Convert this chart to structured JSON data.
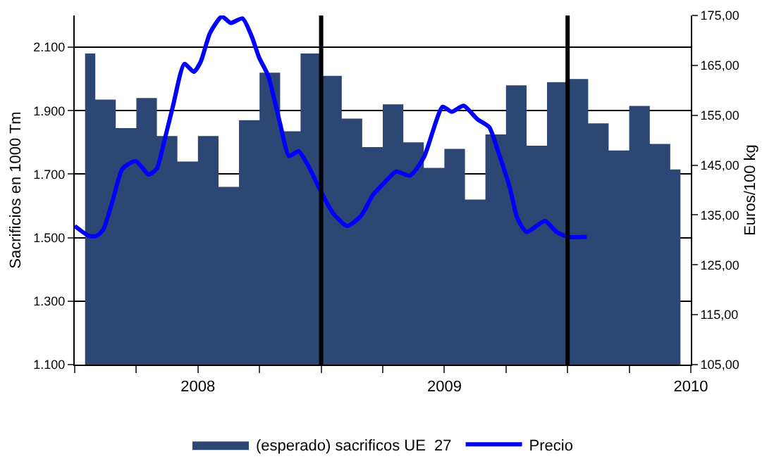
{
  "chart_data": {
    "type": "area",
    "ylabel": "Sacrificios en 1000 Tm",
    "y2label": "Euros/100 kg",
    "xlim": [
      2007.5,
      2010
    ],
    "xticks": [
      {
        "value": 2007.5,
        "label": null
      },
      {
        "value": 2007.75,
        "label": null
      },
      2008,
      {
        "value": 2008.25,
        "label": null
      },
      {
        "value": 2008.5,
        "label": null
      },
      {
        "value": 2008.75,
        "label": null
      },
      2009,
      {
        "value": 2009.25,
        "label": null
      },
      {
        "value": 2009.5,
        "label": null
      },
      {
        "value": 2009.75,
        "label": null
      },
      2010
    ],
    "ylim": [
      1100,
      2200
    ],
    "yticks": [
      {
        "value": 1100,
        "label": "1.100"
      },
      {
        "value": 1300,
        "label": "1.300"
      },
      {
        "value": 1500,
        "label": "1.500"
      },
      {
        "value": 1700,
        "label": "1.700"
      },
      {
        "value": 1900,
        "label": "1.900"
      },
      {
        "value": 2100,
        "label": "2.100"
      }
    ],
    "y2lim": [
      105,
      175
    ],
    "y2ticks": [
      {
        "value": 105,
        "label": "105,00"
      },
      {
        "value": 115,
        "label": "115,00"
      },
      {
        "value": 125,
        "label": "125,00"
      },
      {
        "value": 135,
        "label": "135,00"
      },
      {
        "value": 145,
        "label": "145,00"
      },
      {
        "value": 155,
        "label": "155,00"
      },
      {
        "value": 165,
        "label": "165,00"
      },
      {
        "value": 175,
        "label": "175,00"
      }
    ],
    "grid": "y",
    "legend": "bottom",
    "ref_lines": [
      {
        "axis": "x",
        "value": 2008.5,
        "color": "#000000"
      },
      {
        "axis": "x",
        "value": 2009.5,
        "color": "#000000"
      }
    ],
    "series": [
      {
        "name": "(esperado) sacrificos UE  27",
        "color": "#2d4775",
        "x": [
          2007.542,
          2007.625,
          2007.708,
          2007.792,
          2007.875,
          2007.958,
          2008.042,
          2008.125,
          2008.208,
          2008.292,
          2008.375,
          2008.458,
          2008.542,
          2008.625,
          2008.708,
          2008.792,
          2008.875,
          2008.958,
          2009.042,
          2009.125,
          2009.208,
          2009.292,
          2009.375,
          2009.458,
          2009.542,
          2009.625,
          2009.708,
          2009.792,
          2009.875,
          2009.958
        ],
        "values": [
          2080,
          1935,
          1845,
          1940,
          1820,
          1740,
          1820,
          1660,
          1870,
          2020,
          1835,
          2080,
          2010,
          1875,
          1785,
          1920,
          1800,
          1720,
          1780,
          1620,
          1825,
          1980,
          1790,
          1990,
          2000,
          1860,
          1775,
          1915,
          1795,
          1715
        ]
      },
      {
        "name": "Precio",
        "type": "line",
        "axis": "y2",
        "color": "#0000ff",
        "x": [
          2007.5,
          2007.558,
          2007.588,
          2007.615,
          2007.653,
          2007.694,
          2007.748,
          2007.8,
          2007.833,
          2007.861,
          2007.898,
          2007.945,
          2007.983,
          2008.011,
          2008.049,
          2008.097,
          2008.133,
          2008.181,
          2008.219,
          2008.248,
          2008.285,
          2008.333,
          2008.37,
          2008.408,
          2008.445,
          2008.498,
          2008.549,
          2008.606,
          2008.663,
          2008.71,
          2008.757,
          2008.804,
          2008.861,
          2008.917,
          2008.993,
          2009.03,
          2009.078,
          2009.134,
          2009.182,
          2009.219,
          2009.267,
          2009.295,
          2009.333,
          2009.408,
          2009.455,
          2009.503,
          2009.578
        ],
        "values": [
          132.8,
          130.8,
          130.8,
          132.0,
          137.7,
          144.3,
          145.8,
          143.1,
          144.3,
          149.3,
          156.7,
          165.3,
          163.7,
          165.7,
          171.5,
          174.8,
          173.5,
          174.4,
          170.7,
          166.6,
          162.9,
          153.4,
          146.8,
          147.8,
          145.1,
          139.8,
          135.3,
          132.8,
          134.9,
          139.0,
          141.5,
          143.7,
          142.9,
          146.6,
          156.7,
          155.7,
          156.9,
          154.2,
          152.6,
          147.6,
          140.2,
          134.5,
          131.6,
          133.8,
          131.6,
          130.6,
          130.6
        ]
      }
    ]
  }
}
